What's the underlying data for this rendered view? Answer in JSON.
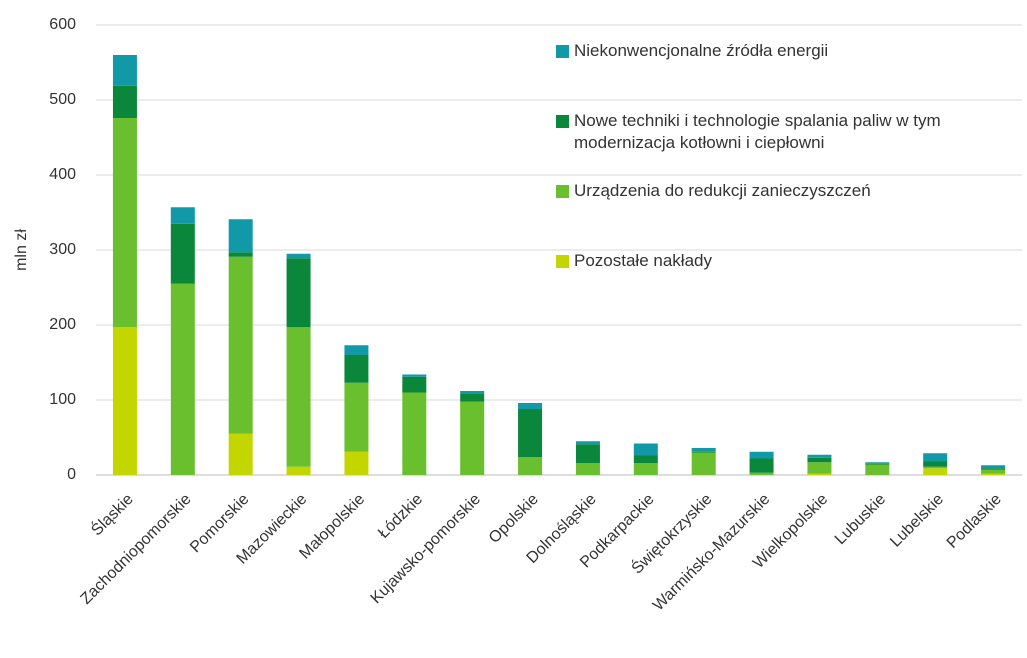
{
  "chart_data": {
    "type": "bar",
    "stacked": true,
    "y_label": "mln zł",
    "categories": [
      "Śląskie",
      "Zachodniopomorskie",
      "Pomorskie",
      "Mazowieckie",
      "Małopolskie",
      "Łódzkie",
      "Kujawsko-pomorskie",
      "Opolskie",
      "Dolnośląskie",
      "Podkarpackie",
      "Świętokrzyskie",
      "Warmińsko-Mazurskie",
      "Wielkopolskie",
      "Lubuskie",
      "Lubelskie",
      "Podlaskie"
    ],
    "series": [
      {
        "name": "Pozostałe nakłady",
        "color": "#c4d600",
        "values": [
          197,
          0,
          55,
          11,
          31,
          0,
          0,
          0,
          0,
          0,
          0,
          0,
          2,
          0,
          9,
          2
        ]
      },
      {
        "name": "Urządzenia do redukcji zanieczyszczeń",
        "color": "#6abf2e",
        "values": [
          279,
          255,
          236,
          186,
          92,
          110,
          98,
          24,
          16,
          16,
          30,
          3,
          15,
          14,
          2,
          5
        ]
      },
      {
        "name": "Nowe techniki i technologie spalania paliw w tym modernizacja kotłowni i ciepłowni",
        "color": "#0a873a",
        "values": [
          43,
          80,
          6,
          92,
          37,
          21,
          11,
          64,
          25,
          10,
          1,
          19,
          6,
          1,
          7,
          2
        ]
      },
      {
        "name": "Niekonwencjonalne źródła energii",
        "color": "#1299a8",
        "values": [
          41,
          22,
          44,
          6,
          13,
          3,
          3,
          8,
          4,
          16,
          5,
          9,
          4,
          2,
          11,
          4
        ]
      }
    ],
    "ylim": [
      0,
      600
    ],
    "yticks": [
      0,
      100,
      200,
      300,
      400,
      500,
      600
    ],
    "grid": true
  }
}
